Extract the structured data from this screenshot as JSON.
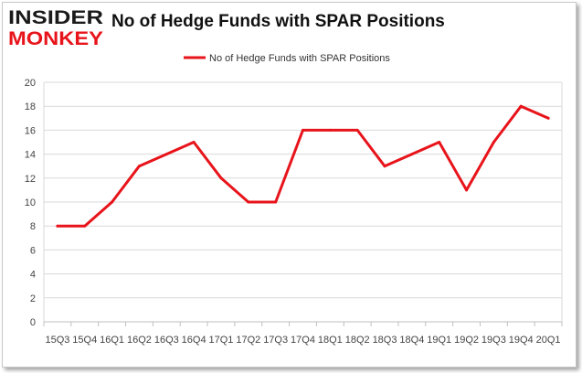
{
  "brand": {
    "logo_top": "INSIDER",
    "logo_bottom": "MONKEY"
  },
  "colors": {
    "series": "#e8141b",
    "logo_dark": "#1a1a1a",
    "logo_accent": "#e8141b",
    "grid": "#d9d9d9",
    "axis_text": "#444444"
  },
  "chart_data": {
    "type": "line",
    "title": "No of Hedge Funds with SPAR Positions",
    "xlabel": "",
    "ylabel": "",
    "ylim": [
      0,
      20
    ],
    "yticks": [
      0,
      2,
      4,
      6,
      8,
      10,
      12,
      14,
      16,
      18,
      20
    ],
    "grid": true,
    "legend_placement": "top-center",
    "categories": [
      "15Q3",
      "15Q4",
      "16Q1",
      "16Q2",
      "16Q3",
      "16Q4",
      "17Q1",
      "17Q2",
      "17Q3",
      "17Q4",
      "18Q1",
      "18Q2",
      "18Q3",
      "18Q4",
      "19Q1",
      "19Q2",
      "19Q3",
      "19Q4",
      "20Q1"
    ],
    "series": [
      {
        "name": "No of Hedge Funds with SPAR Positions",
        "values": [
          8,
          8,
          10,
          13,
          14,
          15,
          12,
          10,
          10,
          16,
          16,
          16,
          13,
          14,
          15,
          11,
          15,
          18,
          17
        ]
      }
    ]
  }
}
